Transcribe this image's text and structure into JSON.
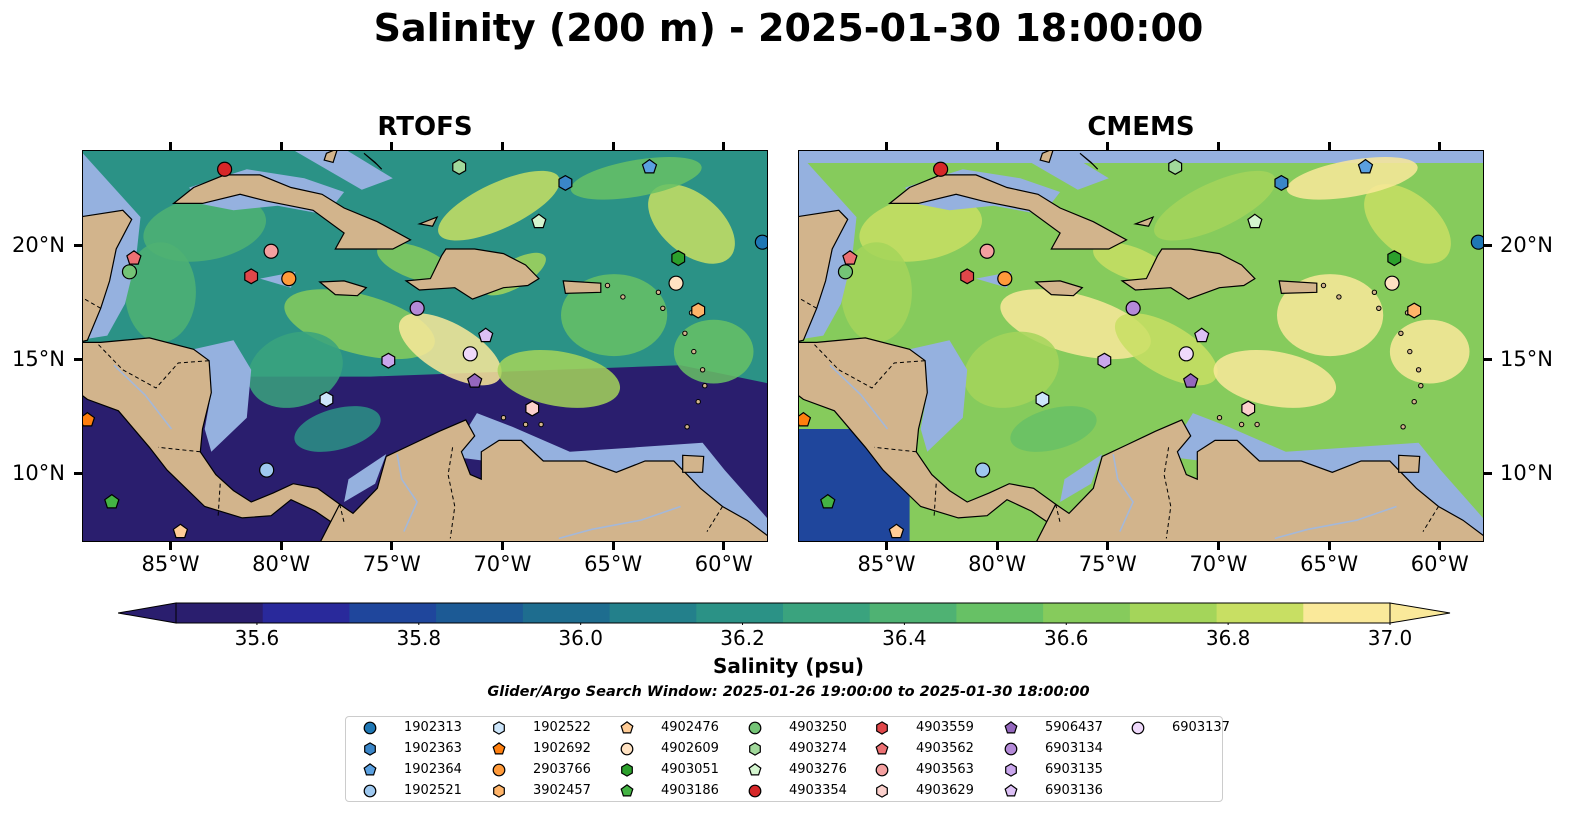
{
  "title": "Salinity (200 m) - 2025-01-30 18:00:00",
  "panels": [
    {
      "title": "RTOFS"
    },
    {
      "title": "CMEMS"
    }
  ],
  "map": {
    "lon_range": [
      -89,
      -58
    ],
    "lat_range": [
      7,
      24.2
    ],
    "lat_ticks": [
      "20°N",
      "15°N",
      "10°N"
    ],
    "lon_ticks": [
      "85°W",
      "80°W",
      "75°W",
      "70°W",
      "65°W",
      "60°W"
    ],
    "colors": {
      "land": "#d2b48c",
      "shelf": "#95b1df",
      "coast": "#000000",
      "rivers": "#a4b8d9"
    }
  },
  "colorbar": {
    "label": "Salinity (psu)",
    "min": 35.5,
    "max": 37.0,
    "extend": "both",
    "tick_labels": [
      "35.6",
      "35.8",
      "36.0",
      "36.2",
      "36.4",
      "36.6",
      "36.8",
      "37.0"
    ],
    "colors": [
      "#2a1e6e",
      "#29299b",
      "#1f469c",
      "#1c5a95",
      "#1e6d8f",
      "#23808b",
      "#2b9286",
      "#3aa37e",
      "#4fb273",
      "#67c165",
      "#86cb5c",
      "#a4d55a",
      "#c8df63",
      "#fae99a"
    ]
  },
  "search_window": "Glider/Argo Search Window: 2025-01-26 19:00:00 to 2025-01-30 18:00:00",
  "floats": [
    {
      "id": "1902313",
      "marker": "circle",
      "color": "#1f77b4",
      "lon": -58.3,
      "lat": 20.2
    },
    {
      "id": "1902363",
      "marker": "hexagon",
      "color": "#3a86c8",
      "lon": -67.2,
      "lat": 22.8
    },
    {
      "id": "1902364",
      "marker": "pentagon",
      "color": "#5aa0e0",
      "lon": -63.4,
      "lat": 23.5
    },
    {
      "id": "1902521",
      "marker": "circle",
      "color": "#9ec8ef",
      "lon": -80.7,
      "lat": 10.2
    },
    {
      "id": "1902522",
      "marker": "hexagon",
      "color": "#cde6fb",
      "lon": -78.0,
      "lat": 13.3
    },
    {
      "id": "1902692",
      "marker": "pentagon",
      "color": "#ff7f0e",
      "lon": -88.8,
      "lat": 12.4
    },
    {
      "id": "2903766",
      "marker": "circle",
      "color": "#ff9a3a",
      "lon": -79.7,
      "lat": 18.6
    },
    {
      "id": "3902457",
      "marker": "hexagon",
      "color": "#ffb469",
      "lon": -61.2,
      "lat": 17.2
    },
    {
      "id": "4902476",
      "marker": "pentagon",
      "color": "#ffcc96",
      "lon": -84.6,
      "lat": 7.5
    },
    {
      "id": "4902609",
      "marker": "circle",
      "color": "#ffe2c2",
      "lon": -62.2,
      "lat": 18.4
    },
    {
      "id": "4903051",
      "marker": "hexagon",
      "color": "#2ca02c",
      "lon": -62.1,
      "lat": 19.5
    },
    {
      "id": "4903186",
      "marker": "pentagon",
      "color": "#44b344",
      "lon": -87.7,
      "lat": 8.8
    },
    {
      "id": "4903250",
      "marker": "circle",
      "color": "#74c476",
      "lon": -86.9,
      "lat": 18.9
    },
    {
      "id": "4903274",
      "marker": "hexagon",
      "color": "#a1d99b",
      "lon": -72.0,
      "lat": 23.5
    },
    {
      "id": "4903276",
      "marker": "pentagon",
      "color": "#d4f5cf",
      "lon": -68.4,
      "lat": 21.1
    },
    {
      "id": "4903354",
      "marker": "circle",
      "color": "#d62728",
      "lon": -82.6,
      "lat": 23.4
    },
    {
      "id": "4903559",
      "marker": "hexagon",
      "color": "#e0474a",
      "lon": -81.4,
      "lat": 18.7
    },
    {
      "id": "4903562",
      "marker": "pentagon",
      "color": "#ec7073",
      "lon": -86.7,
      "lat": 19.5
    },
    {
      "id": "4903563",
      "marker": "circle",
      "color": "#f4a0a0",
      "lon": -80.5,
      "lat": 19.8
    },
    {
      "id": "4903629",
      "marker": "hexagon",
      "color": "#fbd0cc",
      "lon": -68.7,
      "lat": 12.9
    },
    {
      "id": "5906437",
      "marker": "pentagon",
      "color": "#9467bd",
      "lon": -71.3,
      "lat": 14.1
    },
    {
      "id": "6903134",
      "marker": "circle",
      "color": "#b48ad8",
      "lon": -73.9,
      "lat": 17.3
    },
    {
      "id": "6903135",
      "marker": "hexagon",
      "color": "#c9a6ec",
      "lon": -75.2,
      "lat": 15.0
    },
    {
      "id": "6903136",
      "marker": "pentagon",
      "color": "#dcc0f5",
      "lon": -70.8,
      "lat": 16.1
    },
    {
      "id": "6903137",
      "marker": "circle",
      "color": "#efd9fb",
      "lon": -71.5,
      "lat": 15.3
    }
  ]
}
